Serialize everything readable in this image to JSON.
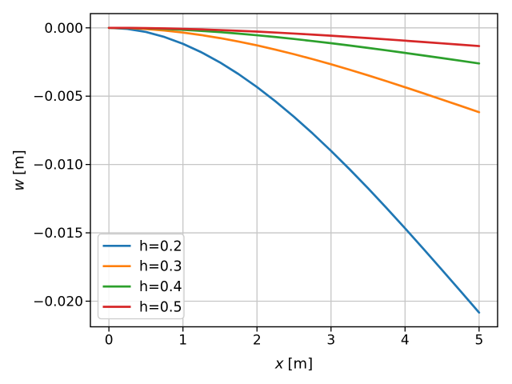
{
  "figure": {
    "background": "#ffffff",
    "title": ""
  },
  "chart_data": {
    "type": "line",
    "xlabel": {
      "variable": "x",
      "unit": "[m]"
    },
    "ylabel": {
      "variable": "w",
      "unit": "[m]"
    },
    "xlim": [
      -0.25,
      5.25
    ],
    "ylim": [
      -0.0218749,
      0.0010417
    ],
    "grid": true,
    "legend_location": "lower left",
    "xtick_values": [
      0,
      1,
      2,
      3,
      4,
      5
    ],
    "xtick_labels": [
      "0",
      "1",
      "2",
      "3",
      "4",
      "5"
    ],
    "ytick_values": [
      0.0,
      -0.005,
      -0.01,
      -0.015,
      -0.02
    ],
    "ytick_labels": [
      "0.000",
      "−0.005",
      "−0.010",
      "−0.015",
      "−0.020"
    ],
    "x": [
      0,
      0.25,
      0.5,
      0.75,
      1,
      1.25,
      1.5,
      1.75,
      2,
      2.25,
      2.5,
      2.75,
      3,
      3.25,
      3.5,
      3.75,
      4,
      4.25,
      4.5,
      4.75,
      5
    ],
    "series": [
      {
        "name": "h=0.2",
        "color": "#1f77b4",
        "w": [
          0,
          -7.7e-05,
          -0.000302,
          -0.000668,
          -0.001167,
          -0.00179,
          -0.002531,
          -0.003382,
          -0.004333,
          -0.005379,
          -0.00651,
          -0.00772,
          -0.009,
          -0.010342,
          -0.01174,
          -0.013184,
          -0.014667,
          -0.016181,
          -0.017719,
          -0.019272,
          -0.020833
        ]
      },
      {
        "name": "h=0.3",
        "color": "#ff7f0e",
        "w": [
          0,
          -2.3e-05,
          -9e-05,
          -0.000198,
          -0.000346,
          -0.00053,
          -0.00075,
          -0.001002,
          -0.001284,
          -0.001594,
          -0.001929,
          -0.002287,
          -0.002667,
          -0.003064,
          -0.003478,
          -0.003906,
          -0.004346,
          -0.004794,
          -0.00525,
          -0.00571,
          -0.006173
        ]
      },
      {
        "name": "h=0.4",
        "color": "#2ca02c",
        "w": [
          0,
          -1e-05,
          -3.8e-05,
          -8.3e-05,
          -0.000146,
          -0.000224,
          -0.000316,
          -0.000423,
          -0.000542,
          -0.000672,
          -0.000814,
          -0.000965,
          -0.001125,
          -0.001293,
          -0.001467,
          -0.001648,
          -0.001833,
          -0.002023,
          -0.002215,
          -0.002409,
          -0.002604
        ]
      },
      {
        "name": "h=0.5",
        "color": "#d62728",
        "w": [
          0,
          -5e-06,
          -1.9e-05,
          -4.3e-05,
          -7.5e-05,
          -0.000115,
          -0.000162,
          -0.000216,
          -0.000277,
          -0.000344,
          -0.000417,
          -0.000494,
          -0.000576,
          -0.000662,
          -0.000751,
          -0.000844,
          -0.000939,
          -0.001036,
          -0.001134,
          -0.001233,
          -0.001333
        ]
      }
    ]
  }
}
